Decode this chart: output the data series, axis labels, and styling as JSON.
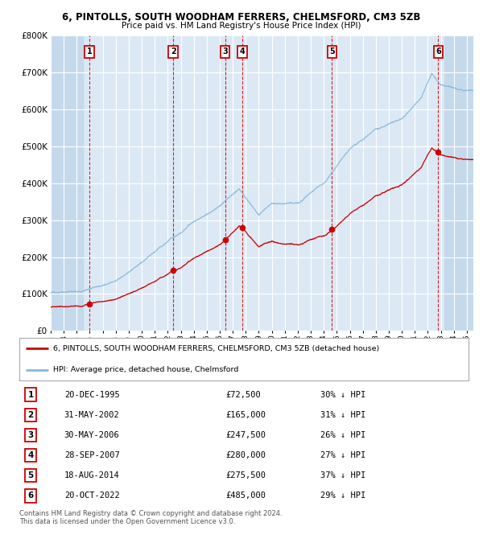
{
  "title_line1": "6, PINTOLLS, SOUTH WOODHAM FERRERS, CHELMSFORD, CM3 5ZB",
  "title_line2": "Price paid vs. HM Land Registry's House Price Index (HPI)",
  "ylim": [
    0,
    800000
  ],
  "yticks": [
    0,
    100000,
    200000,
    300000,
    400000,
    500000,
    600000,
    700000,
    800000
  ],
  "ytick_labels": [
    "£0",
    "£100K",
    "£200K",
    "£300K",
    "£400K",
    "£500K",
    "£600K",
    "£700K",
    "£800K"
  ],
  "bg_color": "#dce9f5",
  "hatch_color": "#c5d9ec",
  "grid_color": "#ffffff",
  "hpi_line_color": "#85b8d9",
  "sale_line_color": "#cc0000",
  "sale_dot_color": "#cc0000",
  "vline_color": "#cc0000",
  "sales": [
    {
      "label": "1",
      "date": "1995-12-20",
      "x": 1995.97,
      "price": 72500
    },
    {
      "label": "2",
      "date": "2002-05-31",
      "x": 2002.42,
      "price": 165000
    },
    {
      "label": "3",
      "date": "2006-05-30",
      "x": 2006.41,
      "price": 247500
    },
    {
      "label": "4",
      "date": "2007-09-28",
      "x": 2007.75,
      "price": 280000
    },
    {
      "label": "5",
      "date": "2014-08-18",
      "x": 2014.63,
      "price": 275500
    },
    {
      "label": "6",
      "date": "2022-10-20",
      "x": 2022.8,
      "price": 485000
    }
  ],
  "legend_entries": [
    {
      "label": "6, PINTOLLS, SOUTH WOODHAM FERRERS, CHELMSFORD, CM3 5ZB (detached house)",
      "color": "#cc0000"
    },
    {
      "label": "HPI: Average price, detached house, Chelmsford",
      "color": "#85b8d9"
    }
  ],
  "table_rows": [
    {
      "num": "1",
      "date": "20-DEC-1995",
      "price": "£72,500",
      "hpi": "30% ↓ HPI"
    },
    {
      "num": "2",
      "date": "31-MAY-2002",
      "price": "£165,000",
      "hpi": "31% ↓ HPI"
    },
    {
      "num": "3",
      "date": "30-MAY-2006",
      "price": "£247,500",
      "hpi": "26% ↓ HPI"
    },
    {
      "num": "4",
      "date": "28-SEP-2007",
      "price": "£280,000",
      "hpi": "27% ↓ HPI"
    },
    {
      "num": "5",
      "date": "18-AUG-2014",
      "price": "£275,500",
      "hpi": "37% ↓ HPI"
    },
    {
      "num": "6",
      "date": "20-OCT-2022",
      "price": "£485,000",
      "hpi": "29% ↓ HPI"
    }
  ],
  "footnote": "Contains HM Land Registry data © Crown copyright and database right 2024.\nThis data is licensed under the Open Government Licence v3.0.",
  "xmin": 1993.0,
  "xmax": 2025.5,
  "hpi_anchors_x": [
    1993.0,
    1995.0,
    1997.0,
    1998.0,
    2000.0,
    2002.0,
    2004.0,
    2006.0,
    2007.5,
    2009.0,
    2010.0,
    2012.0,
    2014.0,
    2016.0,
    2018.0,
    2020.0,
    2021.5,
    2022.3,
    2023.0,
    2025.5
  ],
  "hpi_anchors_y": [
    103000,
    108000,
    125000,
    137000,
    185000,
    245000,
    300000,
    340000,
    385000,
    310000,
    345000,
    345000,
    400000,
    490000,
    540000,
    565000,
    625000,
    690000,
    660000,
    645000
  ]
}
